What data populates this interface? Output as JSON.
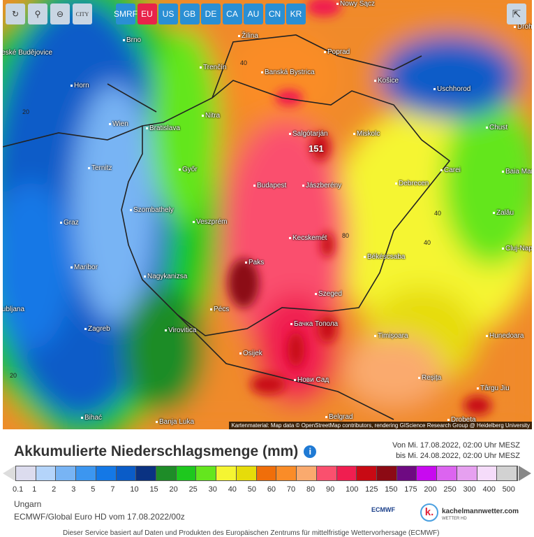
{
  "toolbar": {
    "tools": [
      {
        "icon": "refresh-icon",
        "glyph": "↻"
      },
      {
        "icon": "location-pin-icon",
        "glyph": "⚲"
      },
      {
        "icon": "zoom-out-icon",
        "glyph": "⊖"
      },
      {
        "icon": "city-toggle-icon",
        "glyph": "CITY"
      }
    ],
    "regions": [
      "SMRF",
      "EU",
      "US",
      "GB",
      "DE",
      "CA",
      "AU",
      "CN",
      "KR"
    ],
    "active_region": "EU",
    "share_icon": "share-icon"
  },
  "map": {
    "cities": [
      "Nowy Sącz",
      "Drohobych",
      "Brno",
      "Žilina",
      "Poprad",
      "České Budějovice",
      "Trenčín",
      "Banská Bystrica",
      "Košice",
      "Uschhorod",
      "Horn",
      "Wien",
      "Bratislava",
      "Nitra",
      "Salgótarján",
      "Miskolc",
      "Chust",
      "Ternitz",
      "Győr",
      "Carei",
      "Baia Mare",
      "Budapest",
      "Jászberény",
      "Debrecen",
      "Szombathely",
      "Graz",
      "Veszprém",
      "Zalău",
      "Kecskemét",
      "Cluj-Napoca",
      "Békéscsaba",
      "Paks",
      "Maribor",
      "Nagykanizsa",
      "Szeged",
      "Ljubljana",
      "Pécs",
      "Zagreb",
      "Virovitica",
      "Бачка Топола",
      "Timișoara",
      "Hunedoara",
      "Osijek",
      "Нови Сад",
      "Reșița",
      "Târgu Jiu",
      "Bihać",
      "Banja Luka",
      "Belgrad",
      "Drobeta"
    ],
    "max_value": "151",
    "isolines": [
      "40",
      "20",
      "80",
      "40",
      "40",
      "20"
    ],
    "attribution": "Kartenmaterial: Map data © OpenStreetMap contributors, rendering GIScience Research Group @ Heidelberg University"
  },
  "legend": {
    "title": "Akkumulierte Niederschlagsmenge (mm)",
    "info_icon": "info-icon",
    "from": "Von Mi. 17.08.2022, 02:00 Uhr MESZ",
    "to": "bis Mi. 24.08.2022, 02:00 Uhr MESZ",
    "colors": [
      "#dcdcee",
      "#b4d4fa",
      "#78b4f4",
      "#3c96f0",
      "#1478e6",
      "#0a5cc8",
      "#0a3282",
      "#1e8c28",
      "#1ec81e",
      "#64e61e",
      "#f5f532",
      "#e6dc0a",
      "#f06e0a",
      "#fa8c28",
      "#faaa6e",
      "#fa506e",
      "#f01e50",
      "#c80a14",
      "#8c0a14",
      "#6e0a82",
      "#c80af0",
      "#dc64f0",
      "#e6a0f0",
      "#f5dcfa",
      "#d2d2d2"
    ],
    "ticks": [
      "0.1",
      "1",
      "2",
      "3",
      "5",
      "7",
      "10",
      "15",
      "20",
      "25",
      "30",
      "40",
      "50",
      "60",
      "70",
      "80",
      "90",
      "100",
      "125",
      "150",
      "175",
      "200",
      "250",
      "300",
      "400",
      "500"
    ]
  },
  "footer": {
    "region": "Ungarn",
    "model": "ECMWF/Global Euro HD vom 17.08.2022/00z",
    "ecmwf_logo": "ECMWF",
    "brand": "kachelmannwetter.com",
    "brand_sub": "WETTER HD",
    "notice": "Dieser Service basiert auf Daten und Produkten des Europäischen Zentrums für mittelfristige Wettervorhersage (ECMWF)"
  }
}
